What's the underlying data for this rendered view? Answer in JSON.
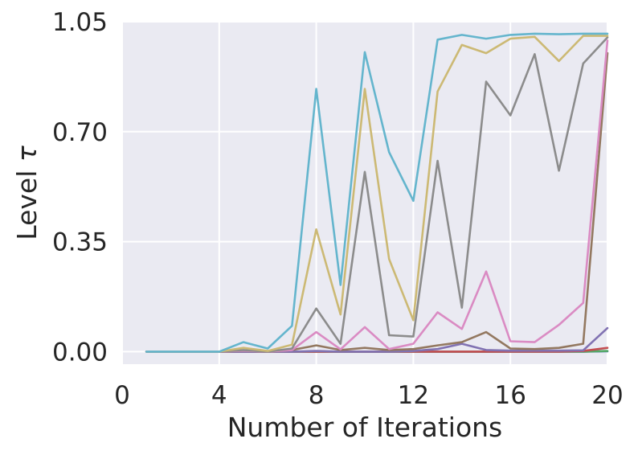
{
  "chart_data": {
    "type": "line",
    "title": "",
    "xlabel": "Number of Iterations",
    "ylabel_text": "Level ",
    "ylabel_symbol": "τ",
    "xlim": [
      0,
      20
    ],
    "ylim": [
      -0.04,
      1.05
    ],
    "xticks": [
      0,
      4,
      8,
      12,
      16,
      20
    ],
    "yticks": [
      0.0,
      0.35,
      0.7,
      1.05
    ],
    "ytick_labels": [
      "0.00",
      "0.35",
      "0.70",
      "1.05"
    ],
    "grid": true,
    "background_color": "#EAEAF2",
    "grid_color": "#FFFFFF",
    "legend": "none",
    "x": [
      1,
      2,
      3,
      4,
      5,
      6,
      7,
      8,
      9,
      10,
      11,
      12,
      13,
      14,
      15,
      16,
      17,
      18,
      19,
      20
    ],
    "series": [
      {
        "color": "#4C72B0",
        "values": [
          0,
          0,
          0,
          0,
          0,
          0,
          0,
          0,
          0,
          0,
          0,
          0,
          0,
          0,
          0,
          0,
          0,
          0,
          0,
          0.001
        ]
      },
      {
        "color": "#55A868",
        "values": [
          0,
          0,
          0,
          0,
          0,
          0,
          0,
          0,
          0,
          0,
          0,
          0,
          0,
          0,
          0,
          0,
          0,
          0,
          0,
          0.002
        ]
      },
      {
        "color": "#C44E52",
        "values": [
          0,
          0,
          0,
          0,
          0,
          0,
          0,
          0,
          0,
          0,
          0,
          0,
          0,
          0,
          0,
          0,
          0,
          0,
          0.002,
          0.012
        ]
      },
      {
        "color": "#8172B2",
        "values": [
          0,
          0,
          0,
          0,
          0,
          0,
          0,
          0.002,
          0,
          0,
          0,
          0.002,
          0.008,
          0.025,
          0.005,
          0.003,
          0.003,
          0.003,
          0.004,
          0.075
        ]
      },
      {
        "color": "#937860",
        "values": [
          0,
          0,
          0,
          0,
          0.003,
          0,
          0.005,
          0.02,
          0.005,
          0.012,
          0.005,
          0.008,
          0.02,
          0.03,
          0.062,
          0.01,
          0.008,
          0.012,
          0.025,
          0.95
        ]
      },
      {
        "color": "#DA8BC3",
        "values": [
          0,
          0,
          0,
          0,
          0.003,
          0,
          0.005,
          0.062,
          0.007,
          0.078,
          0.008,
          0.025,
          0.125,
          0.072,
          0.255,
          0.033,
          0.03,
          0.085,
          0.155,
          0.99
        ]
      },
      {
        "color": "#8C8C8C",
        "values": [
          0,
          0,
          0,
          0,
          0.005,
          0,
          0.01,
          0.137,
          0.025,
          0.572,
          0.052,
          0.048,
          0.607,
          0.14,
          0.859,
          0.752,
          0.947,
          0.576,
          0.917,
          1.0
        ]
      },
      {
        "color": "#CCB974",
        "values": [
          0,
          0,
          0,
          0,
          0.012,
          0.002,
          0.022,
          0.389,
          0.118,
          0.836,
          0.295,
          0.1,
          0.828,
          0.976,
          0.95,
          0.996,
          1.002,
          0.925,
          1.005,
          1.005
        ]
      },
      {
        "color": "#64B5CD",
        "values": [
          0,
          0,
          0,
          0,
          0.03,
          0.01,
          0.082,
          0.836,
          0.212,
          0.953,
          0.635,
          0.48,
          0.993,
          1.008,
          0.996,
          1.008,
          1.012,
          1.01,
          1.012,
          1.012
        ]
      }
    ]
  }
}
